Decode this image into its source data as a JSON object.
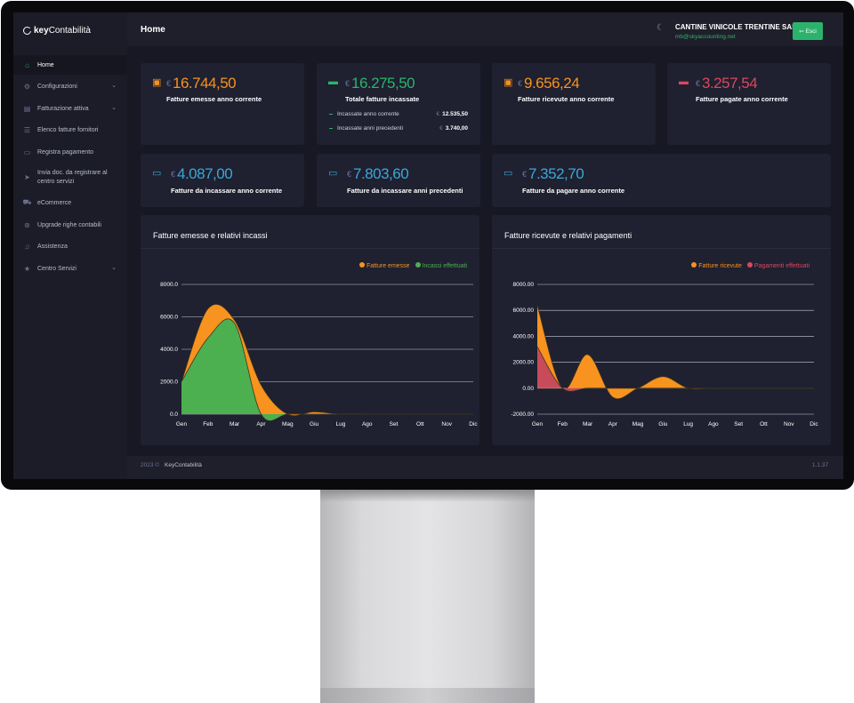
{
  "app": {
    "logo_key": "key",
    "logo_rest": "Contabilità"
  },
  "sidebar": {
    "items": [
      {
        "label": "Home",
        "icon": "home-icon"
      },
      {
        "label": "Configurazioni",
        "icon": "gears-icon",
        "chevron": "⌄"
      },
      {
        "label": "Fatturazione attiva",
        "icon": "document-icon",
        "chevron": "⌄"
      },
      {
        "label": "Elenco fatture fornitori",
        "icon": "list-icon"
      },
      {
        "label": "Registra pagamento",
        "icon": "credit-card-icon"
      },
      {
        "label": "Invia doc. da registrare al centro servizi",
        "icon": "paper-plane-icon"
      },
      {
        "label": "eCommerce",
        "icon": "cart-icon"
      },
      {
        "label": "Upgrade righe contabili",
        "icon": "upgrade-icon"
      },
      {
        "label": "Assistenza",
        "icon": "bell-icon"
      },
      {
        "label": "Centro Servizi",
        "icon": "star-icon",
        "chevron": "⌄"
      }
    ]
  },
  "header": {
    "title": "Home",
    "company": "CANTINE VINICOLE TRENTINE SAS",
    "email": "mb@skyaccounting.net",
    "logout_label": "Esci"
  },
  "currency": "€",
  "cards": [
    {
      "amount": "16.744,50",
      "label": "Fatture emesse anno corrente",
      "color": "#f7931e",
      "icon": "invoice-icon"
    },
    {
      "amount": "16.275,50",
      "label": "Totale fatture incassate",
      "color": "#2cb36b",
      "icon": "wallet-icon",
      "details": [
        {
          "label": "Incassate anno corrente",
          "value": "12.535,50"
        },
        {
          "label": "Incassate anni precedenti",
          "value": "3.740,00"
        }
      ]
    },
    {
      "amount": "9.656,24",
      "label": "Fatture ricevute anno corrente",
      "color": "#f7931e",
      "icon": "invoice-icon"
    },
    {
      "amount": "3.257,54",
      "label": "Fatture pagate anno corrente",
      "color": "#d9485f",
      "icon": "wallet-icon"
    },
    {
      "amount": "4.087,00",
      "label": "Fatture da incassare anno corrente",
      "color": "#3aa8d8",
      "icon": "credit-card-icon"
    },
    {
      "amount": "7.803,60",
      "label": "Fatture da incassare anni precedenti",
      "color": "#3aa8d8",
      "icon": "credit-card-icon"
    },
    {
      "amount": "7.352,70",
      "label": "Fatture da pagare anno corrente",
      "color": "#3aa8d8",
      "icon": "credit-card-icon"
    }
  ],
  "footer": {
    "year": "2023 ©",
    "name": "KeyContabilità",
    "version": "1.1.37"
  },
  "chart_data": [
    {
      "type": "area",
      "title": "Fatture emesse e relativi incassi",
      "categories": [
        "Gen",
        "Feb",
        "Mar",
        "Apr",
        "Mag",
        "Giu",
        "Lug",
        "Ago",
        "Set",
        "Ott",
        "Nov",
        "Dic"
      ],
      "ytick_labels": [
        "8000.0",
        "6000.0",
        "4000.0",
        "2000.0",
        "0.0"
      ],
      "ylim": [
        0,
        8000
      ],
      "legend_position": "top-right",
      "series": [
        {
          "name": "Fatture emesse",
          "color": "#f7931e",
          "values": [
            2000,
            6500,
            5800,
            1800,
            0,
            150,
            0,
            0,
            0,
            0,
            0,
            0
          ]
        },
        {
          "name": "Incassi effettuati",
          "color": "#4caf50",
          "values": [
            2000,
            4700,
            5600,
            0,
            0,
            0,
            0,
            0,
            0,
            0,
            0,
            0
          ]
        }
      ]
    },
    {
      "type": "area",
      "title": "Fatture ricevute e relativi pagamenti",
      "categories": [
        "Gen",
        "Feb",
        "Mar",
        "Apr",
        "Mag",
        "Giu",
        "Lug",
        "Ago",
        "Set",
        "Ott",
        "Nov",
        "Dic"
      ],
      "ytick_labels": [
        "8000.00",
        "6000.00",
        "4000.00",
        "2000.00",
        "0.00",
        "-2000.00"
      ],
      "ylim": [
        -2000,
        8000
      ],
      "legend_position": "top-right",
      "series": [
        {
          "name": "Fatture ricevute",
          "color": "#f7931e",
          "values": [
            6400,
            0,
            2600,
            -700,
            0,
            900,
            0,
            0,
            0,
            0,
            0,
            0
          ]
        },
        {
          "name": "Pagamenti effettuati",
          "color": "#c84b5a",
          "values": [
            3200,
            0,
            0,
            0,
            0,
            0,
            0,
            0,
            0,
            0,
            0,
            0
          ]
        }
      ]
    }
  ]
}
